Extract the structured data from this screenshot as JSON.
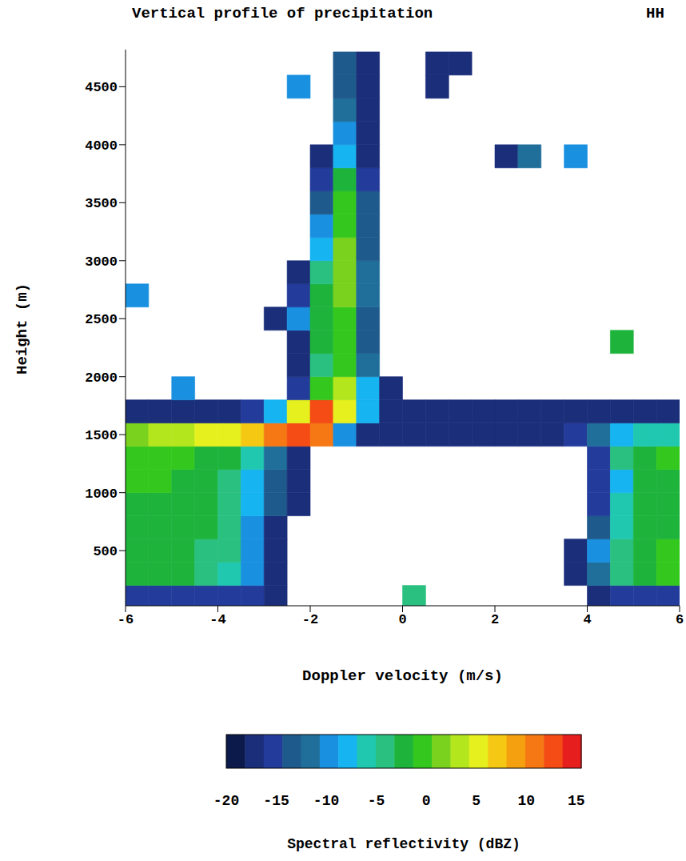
{
  "chart_data": {
    "type": "heatmap",
    "title": "Vertical profile of precipitation",
    "subtitle": "HH",
    "x_label": "Doppler velocity (m/s)",
    "y_label": "Height (m)",
    "xlim": [
      -6,
      6
    ],
    "xticks": [
      -6,
      -4,
      -2,
      0,
      2,
      4,
      6
    ],
    "ylim": [
      25,
      4820
    ],
    "yticks": [
      500,
      1000,
      1500,
      2000,
      2500,
      3000,
      3500,
      4000,
      4500
    ],
    "x_bins": [
      -6,
      -5.5,
      -5,
      -4.5,
      -4,
      -3.5,
      -3,
      -2.5,
      -2,
      -1.5,
      -1,
      -0.5,
      0,
      0.5,
      1,
      1.5,
      2,
      2.5,
      3,
      3.5,
      4,
      4.5,
      5,
      5.5,
      6
    ],
    "y_bins": [
      0,
      200,
      400,
      600,
      800,
      1000,
      1200,
      1400,
      1600,
      1800,
      2000,
      2200,
      2400,
      2600,
      2800,
      3000,
      3200,
      3400,
      3600,
      3800,
      4000,
      4200,
      4400,
      4600,
      4800
    ],
    "cells": [
      [
        -15,
        -15,
        -15,
        -15,
        -15,
        -15,
        -18,
        null,
        null,
        null,
        null,
        null,
        -5,
        null,
        null,
        null,
        null,
        null,
        null,
        null,
        -17,
        -15,
        -15,
        -15
      ],
      [
        -2,
        -2,
        -3,
        -4,
        -6,
        -10,
        -18,
        null,
        null,
        null,
        null,
        null,
        null,
        null,
        null,
        null,
        null,
        null,
        null,
        -18,
        -12,
        -5,
        -2,
        -1
      ],
      [
        -2,
        -2,
        -3,
        -4,
        -5,
        -10,
        -18,
        null,
        null,
        null,
        null,
        null,
        null,
        null,
        null,
        null,
        null,
        null,
        null,
        -17,
        -10,
        -5,
        -2,
        -1
      ],
      [
        -2,
        -2,
        -2,
        -3,
        -5,
        -9,
        -17,
        null,
        null,
        null,
        null,
        null,
        null,
        null,
        null,
        null,
        null,
        null,
        null,
        null,
        -14,
        -6,
        -3,
        -2
      ],
      [
        -2,
        -2,
        -2,
        -3,
        -4,
        -7,
        -13,
        -18,
        null,
        null,
        null,
        null,
        null,
        null,
        null,
        null,
        null,
        null,
        null,
        null,
        -15,
        -6,
        -3,
        -2
      ],
      [
        -1,
        -1,
        -2,
        -2,
        -4,
        -7,
        -13,
        -18,
        null,
        null,
        null,
        null,
        null,
        null,
        null,
        null,
        null,
        null,
        null,
        null,
        -16,
        -7,
        -3,
        -2
      ],
      [
        -1,
        -1,
        -1,
        -2,
        -3,
        -6,
        -12,
        -18,
        null,
        null,
        null,
        null,
        null,
        null,
        null,
        null,
        null,
        null,
        null,
        null,
        -15,
        -5,
        -2,
        -1
      ],
      [
        2,
        3,
        4,
        5,
        6,
        8,
        10,
        12,
        10,
        -10,
        -18,
        -18,
        -18,
        -18,
        -18,
        -18,
        -18,
        -18,
        -18,
        -16,
        -12,
        -8,
        -6,
        -6
      ],
      [
        -17,
        -17,
        -17,
        -17,
        -17,
        -15,
        -8,
        5,
        13,
        6,
        -8,
        -18,
        -18,
        -18,
        -18,
        -18,
        -18,
        -18,
        -18,
        -18,
        -18,
        -18,
        -18,
        -18
      ],
      [
        null,
        null,
        -10,
        null,
        null,
        null,
        null,
        -16,
        -1,
        3,
        -8,
        -18,
        null,
        null,
        null,
        null,
        null,
        null,
        null,
        null,
        null,
        null,
        null,
        null
      ],
      [
        null,
        null,
        null,
        null,
        null,
        null,
        null,
        -18,
        -4,
        0,
        -12,
        null,
        null,
        null,
        null,
        null,
        null,
        null,
        null,
        null,
        null,
        null,
        null,
        null
      ],
      [
        null,
        null,
        null,
        null,
        null,
        null,
        null,
        -17,
        -3,
        0,
        -13,
        null,
        null,
        null,
        null,
        null,
        null,
        null,
        null,
        null,
        null,
        -3,
        null,
        null
      ],
      [
        null,
        null,
        null,
        null,
        null,
        null,
        -18,
        -10,
        -2,
        0,
        -13,
        null,
        null,
        null,
        null,
        null,
        null,
        null,
        null,
        null,
        null,
        null,
        null,
        null
      ],
      [
        -10,
        null,
        null,
        null,
        null,
        null,
        null,
        -16,
        -3,
        1,
        -12,
        null,
        null,
        null,
        null,
        null,
        null,
        null,
        null,
        null,
        null,
        null,
        null,
        null
      ],
      [
        null,
        null,
        null,
        null,
        null,
        null,
        null,
        -18,
        -5,
        1,
        -12,
        null,
        null,
        null,
        null,
        null,
        null,
        null,
        null,
        null,
        null,
        null,
        null,
        null
      ],
      [
        null,
        null,
        null,
        null,
        null,
        null,
        null,
        null,
        -8,
        1,
        -13,
        null,
        null,
        null,
        null,
        null,
        null,
        null,
        null,
        null,
        null,
        null,
        null,
        null
      ],
      [
        null,
        null,
        null,
        null,
        null,
        null,
        null,
        null,
        -10,
        0,
        -14,
        null,
        null,
        null,
        null,
        null,
        null,
        null,
        null,
        null,
        null,
        null,
        null,
        null
      ],
      [
        null,
        null,
        null,
        null,
        null,
        null,
        null,
        null,
        -14,
        -1,
        -14,
        null,
        null,
        null,
        null,
        null,
        null,
        null,
        null,
        null,
        null,
        null,
        null,
        null
      ],
      [
        null,
        null,
        null,
        null,
        null,
        null,
        null,
        null,
        -16,
        -3,
        -16,
        null,
        null,
        null,
        null,
        null,
        null,
        null,
        null,
        null,
        null,
        null,
        null,
        null
      ],
      [
        null,
        null,
        null,
        null,
        null,
        null,
        null,
        null,
        -18,
        -7,
        -17,
        null,
        null,
        null,
        null,
        null,
        -18,
        -12,
        null,
        -10,
        null,
        null,
        null,
        null
      ],
      [
        null,
        null,
        null,
        null,
        null,
        null,
        null,
        null,
        null,
        -10,
        -17,
        null,
        null,
        null,
        null,
        null,
        null,
        null,
        null,
        null,
        null,
        null,
        null,
        null
      ],
      [
        null,
        null,
        null,
        null,
        null,
        null,
        null,
        null,
        null,
        -12,
        -18,
        null,
        null,
        null,
        null,
        null,
        null,
        null,
        null,
        null,
        null,
        null,
        null,
        null
      ],
      [
        null,
        null,
        null,
        null,
        null,
        null,
        null,
        -10,
        null,
        -13,
        -18,
        null,
        null,
        -17,
        null,
        null,
        null,
        null,
        null,
        null,
        null,
        null,
        null,
        null
      ],
      [
        null,
        null,
        null,
        null,
        null,
        null,
        null,
        null,
        null,
        -14,
        -17,
        null,
        null,
        -17,
        -18,
        null,
        null,
        null,
        null,
        null,
        null,
        null,
        null,
        null
      ]
    ],
    "colorbar": {
      "label": "Spectral reflectivity (dBZ)",
      "range": [
        -20,
        15.5
      ],
      "ticks": [
        -20,
        -15,
        -10,
        -5,
        0,
        5,
        10,
        15
      ],
      "colors": [
        "#0b1a4a",
        "#1b2e7a",
        "#233c9c",
        "#1e5a8c",
        "#1f6f9a",
        "#1a90e0",
        "#16b4f0",
        "#20c8b0",
        "#2ac080",
        "#1eb43c",
        "#34c81e",
        "#7ad21e",
        "#b4e61e",
        "#e6f01e",
        "#f5c814",
        "#f5a00f",
        "#f57814",
        "#f54b14",
        "#e61e1e"
      ]
    }
  }
}
